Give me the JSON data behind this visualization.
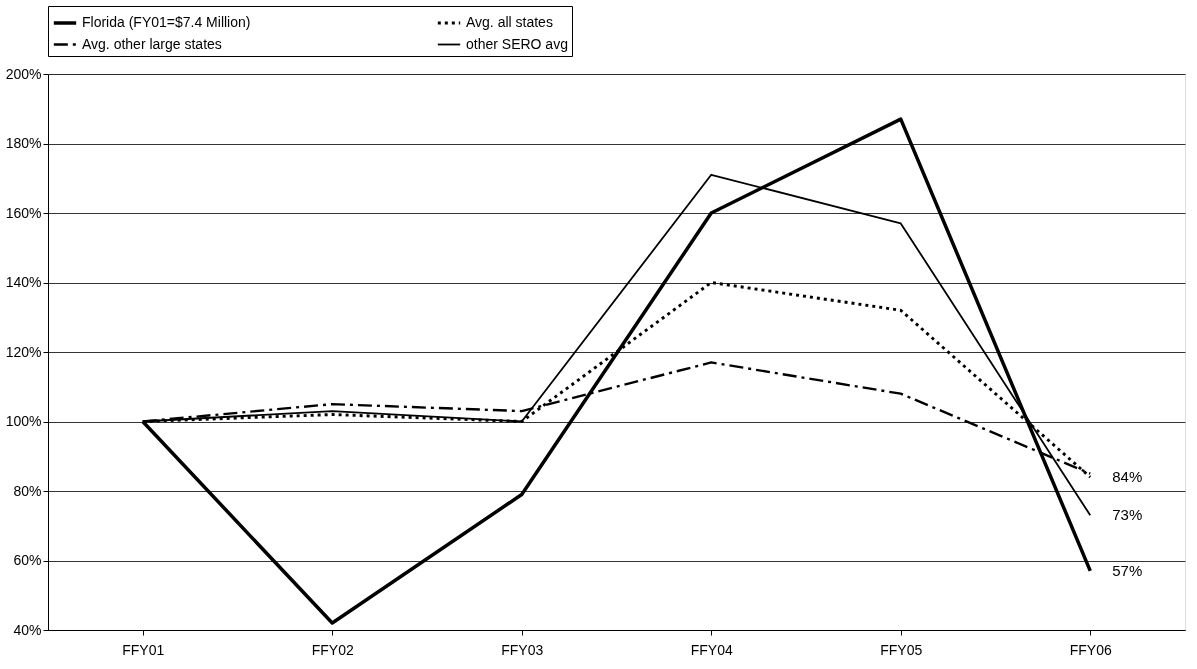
{
  "chart_data": {
    "type": "line",
    "categories": [
      "FFY01",
      "FFY02",
      "FFY03",
      "FFY04",
      "FFY05",
      "FFY06"
    ],
    "series": [
      {
        "name": "Florida (FY01=$7.4 Million)",
        "color": "#000000",
        "line_style": "solid",
        "values": [
          100,
          42,
          79,
          160,
          187,
          57
        ],
        "value_labels": [
          null,
          null,
          null,
          null,
          null,
          "57%"
        ]
      },
      {
        "name": "Avg. all states",
        "color": "#000000",
        "line_style": "dotted",
        "values": [
          100,
          102,
          100,
          140,
          132,
          84
        ],
        "value_labels": [
          null,
          null,
          null,
          null,
          null,
          "84%"
        ]
      },
      {
        "name": "Avg. other large states",
        "color": "#000000",
        "line_style": "dashed",
        "values": [
          100,
          105,
          103,
          117,
          108,
          85
        ]
      },
      {
        "name": "other SERO avg",
        "color": "#000000",
        "line_style": "solid",
        "values": [
          100,
          103,
          100,
          171,
          157,
          73
        ],
        "value_labels": [
          null,
          null,
          null,
          null,
          null,
          "73%"
        ]
      }
    ],
    "ylim": [
      40,
      200
    ],
    "yticks": [
      {
        "value": 40,
        "label": "40%"
      },
      {
        "value": 60,
        "label": "60%"
      },
      {
        "value": 80,
        "label": "80%"
      },
      {
        "value": 100,
        "label": "100%"
      },
      {
        "value": 120,
        "label": "120%"
      },
      {
        "value": 140,
        "label": "140%"
      },
      {
        "value": 160,
        "label": "160%"
      },
      {
        "value": 180,
        "label": "180%"
      },
      {
        "value": 200,
        "label": "200%"
      }
    ],
    "grid": "y",
    "legend": "top",
    "marker": "none"
  }
}
